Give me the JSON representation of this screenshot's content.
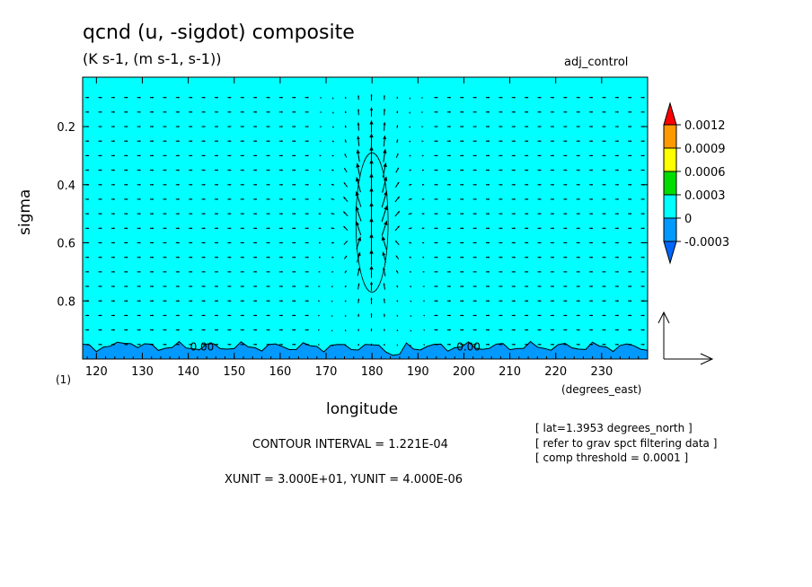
{
  "header": {
    "title": "qcnd (u, -sigdot) composite",
    "subtitle": "(K s-1, (m s-1, s-1))",
    "run_label": "adj_control"
  },
  "notes": {
    "lat": "[ lat=1.3953 degrees_north ]",
    "filter": "[ refer to grav spct filtering data ]",
    "threshold": "[ comp threshold = 0.0001 ]",
    "contour_interval": "CONTOUR INTERVAL = 1.221E-04",
    "units": "XUNIT = 3.000E+01, YUNIT = 4.000E-06",
    "page": "(1)"
  },
  "chart_data": {
    "type": "heatmap",
    "plot_kind": "filled contour with vector overlay",
    "title": "qcnd (u, -sigdot) composite",
    "subtitle": "(K s-1, (m s-1, s-1))",
    "xlabel": "longitude",
    "xunit_label": "(degrees_east)",
    "ylabel": "sigma",
    "xlim": [
      117,
      240
    ],
    "ylim": [
      1.0,
      0.03
    ],
    "y_inverted": true,
    "x_ticks": [
      120,
      130,
      140,
      150,
      160,
      170,
      180,
      190,
      200,
      210,
      220,
      230
    ],
    "y_ticks": [
      0.2,
      0.4,
      0.6,
      0.8
    ],
    "colorbar": {
      "levels": [
        "0.0012",
        "0.0009",
        "0.0006",
        "0.0003",
        "0",
        "-0.0003"
      ],
      "colors": [
        "#ff0000",
        "#ff9900",
        "#ffff00",
        "#00dd00",
        "#00ffff",
        "#0099ff",
        "#0066ff"
      ]
    },
    "background_color": "#00ffff",
    "negative_band_color": "#0099ff",
    "contour_labels": [
      {
        "text": "0.00",
        "lon": 143,
        "sigma": 0.97
      },
      {
        "text": "0.00",
        "lon": 201,
        "sigma": 0.97
      }
    ],
    "contour_ellipse": {
      "center_lon": 180,
      "center_sigma": 0.53,
      "half_width_lon": 3.5,
      "half_height_sigma": 0.24
    },
    "vectors": {
      "x_grid_start": 118,
      "x_grid_step": 2.8125,
      "sigma_levels": [
        0.1,
        0.15,
        0.2,
        0.25,
        0.3,
        0.35,
        0.4,
        0.45,
        0.5,
        0.55,
        0.6,
        0.65,
        0.7,
        0.75,
        0.8,
        0.85,
        0.9,
        0.95
      ],
      "updraft_center_lon": 180,
      "updraft_center_sigma": 0.45,
      "reference": {
        "xunit": 30.0,
        "yunit": 4e-06
      }
    }
  }
}
